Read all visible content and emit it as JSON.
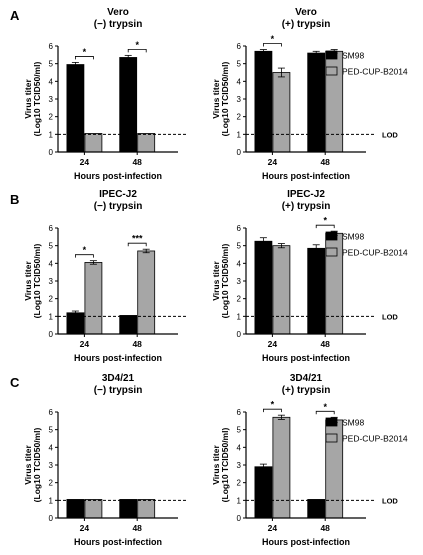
{
  "colors": {
    "SM98": "#000000",
    "PED-CUP-B2014": "#a6a6a6",
    "axis": "#000000"
  },
  "legend": [
    {
      "name": "SM98",
      "color": "#000000"
    },
    {
      "name": "PED-CUP-B2014",
      "color": "#a6a6a6"
    }
  ],
  "panel_letters": [
    "A",
    "B",
    "C"
  ],
  "shared": {
    "ylabel_line1": "Virus titer",
    "ylabel_line2": "(Log10 TCID50/ml)",
    "xlabel": "Hours post-infection",
    "lod_label": "LOD"
  },
  "chart_data": [
    {
      "type": "bar",
      "row": 0,
      "col": 0,
      "title": [
        "Vero",
        "(−) trypsin"
      ],
      "categories": [
        "24",
        "48"
      ],
      "ylim": [
        0,
        6
      ],
      "yticks": [
        0,
        1,
        2,
        3,
        4,
        5,
        6
      ],
      "lod": 1.0,
      "show_lod_label": false,
      "series": [
        {
          "name": "SM98",
          "values": [
            4.95,
            5.35
          ],
          "errors": [
            0.12,
            0.12
          ]
        },
        {
          "name": "PED-CUP-B2014",
          "values": [
            1.05,
            1.05
          ],
          "errors": [
            0,
            0
          ]
        }
      ],
      "annotations": [
        {
          "category": 0,
          "text": "*"
        },
        {
          "category": 1,
          "text": "*"
        }
      ]
    },
    {
      "type": "bar",
      "row": 0,
      "col": 1,
      "title": [
        "Vero",
        "(+) trypsin"
      ],
      "categories": [
        "24",
        "48"
      ],
      "ylim": [
        0,
        6
      ],
      "yticks": [
        0,
        1,
        2,
        3,
        4,
        5,
        6
      ],
      "lod": 1.0,
      "show_lod_label": true,
      "series": [
        {
          "name": "SM98",
          "values": [
            5.7,
            5.6
          ],
          "errors": [
            0.1,
            0.1
          ]
        },
        {
          "name": "PED-CUP-B2014",
          "values": [
            4.5,
            5.7
          ],
          "errors": [
            0.25,
            0.1
          ]
        }
      ],
      "annotations": [
        {
          "category": 0,
          "text": "*"
        }
      ]
    },
    {
      "type": "bar",
      "row": 1,
      "col": 0,
      "title": [
        "IPEC-J2",
        "(−) trypsin"
      ],
      "categories": [
        "24",
        "48"
      ],
      "ylim": [
        0,
        6
      ],
      "yticks": [
        0,
        1,
        2,
        3,
        4,
        5,
        6
      ],
      "lod": 1.0,
      "show_lod_label": false,
      "series": [
        {
          "name": "SM98",
          "values": [
            1.2,
            1.05
          ],
          "errors": [
            0.1,
            0
          ]
        },
        {
          "name": "PED-CUP-B2014",
          "values": [
            4.05,
            4.7
          ],
          "errors": [
            0.1,
            0.1
          ]
        }
      ],
      "annotations": [
        {
          "category": 0,
          "text": "*"
        },
        {
          "category": 1,
          "text": "***"
        }
      ]
    },
    {
      "type": "bar",
      "row": 1,
      "col": 1,
      "title": [
        "IPEC-J2",
        "(+) trypsin"
      ],
      "categories": [
        "24",
        "48"
      ],
      "ylim": [
        0,
        6
      ],
      "yticks": [
        0,
        1,
        2,
        3,
        4,
        5,
        6
      ],
      "lod": 1.0,
      "show_lod_label": true,
      "series": [
        {
          "name": "SM98",
          "values": [
            5.25,
            4.85
          ],
          "errors": [
            0.2,
            0.2
          ]
        },
        {
          "name": "PED-CUP-B2014",
          "values": [
            5.0,
            5.7
          ],
          "errors": [
            0.12,
            0.12
          ]
        }
      ],
      "annotations": [
        {
          "category": 1,
          "text": "*"
        }
      ]
    },
    {
      "type": "bar",
      "row": 2,
      "col": 0,
      "title": [
        "3D4/21",
        "(−) trypsin"
      ],
      "categories": [
        "24",
        "48"
      ],
      "ylim": [
        0,
        6
      ],
      "yticks": [
        0,
        1,
        2,
        3,
        4,
        5,
        6
      ],
      "lod": 1.0,
      "show_lod_label": false,
      "series": [
        {
          "name": "SM98",
          "values": [
            1.05,
            1.05
          ],
          "errors": [
            0,
            0
          ]
        },
        {
          "name": "PED-CUP-B2014",
          "values": [
            1.05,
            1.05
          ],
          "errors": [
            0,
            0
          ]
        }
      ],
      "annotations": []
    },
    {
      "type": "bar",
      "row": 2,
      "col": 1,
      "title": [
        "3D4/21",
        "(+) trypsin"
      ],
      "categories": [
        "24",
        "48"
      ],
      "ylim": [
        0,
        6
      ],
      "yticks": [
        0,
        1,
        2,
        3,
        4,
        5,
        6
      ],
      "lod": 1.0,
      "show_lod_label": true,
      "series": [
        {
          "name": "SM98",
          "values": [
            2.9,
            1.05
          ],
          "errors": [
            0.15,
            0
          ]
        },
        {
          "name": "PED-CUP-B2014",
          "values": [
            5.7,
            5.55
          ],
          "errors": [
            0.12,
            0.15
          ]
        }
      ],
      "annotations": [
        {
          "category": 0,
          "text": "*"
        },
        {
          "category": 1,
          "text": "*"
        }
      ]
    }
  ]
}
